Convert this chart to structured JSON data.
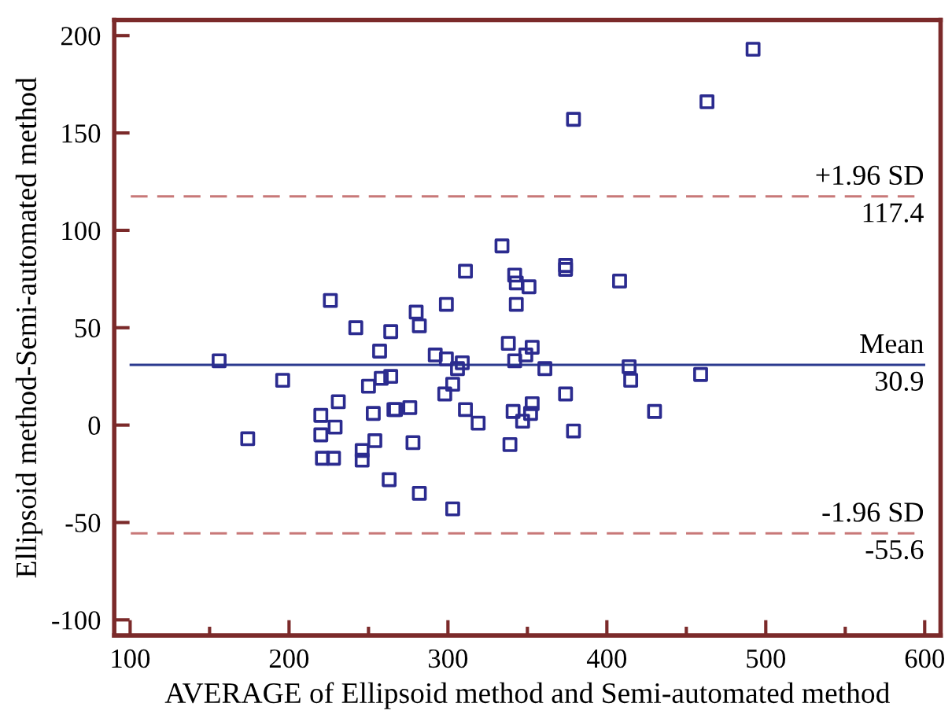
{
  "chart_data": {
    "type": "scatter",
    "xlabel": "AVERAGE of Ellipsoid method and Semi-automated method",
    "ylabel": "Ellipsoid method-Semi-automated method",
    "xlim": [
      90,
      610
    ],
    "ylim": [
      -108,
      208
    ],
    "xticks": [
      100,
      {
        "value": 150,
        "label": null
      },
      200,
      {
        "value": 250,
        "label": null
      },
      300,
      {
        "value": 350,
        "label": null
      },
      400,
      {
        "value": 450,
        "label": null
      },
      500,
      {
        "value": 550,
        "label": null
      },
      600
    ],
    "yticks": [
      -100,
      -50,
      0,
      50,
      100,
      150,
      200
    ],
    "marker": "square",
    "grid": false,
    "legend": false,
    "series": [
      {
        "color": "#2b2b8f",
        "x": [
          156,
          174,
          196,
          220,
          220,
          221,
          228,
          229,
          231,
          246,
          246,
          254,
          253,
          250,
          258,
          257,
          264,
          266,
          267,
          263,
          276,
          278,
          282,
          292,
          299,
          298,
          303,
          306,
          309,
          311,
          319,
          303,
          338,
          342,
          349,
          353,
          341,
          339,
          347,
          352,
          353,
          361,
          374,
          379,
          414,
          415,
          459,
          430,
          334,
          311,
          342,
          343,
          351,
          343,
          299,
          226,
          242,
          264,
          280,
          282,
          492,
          463,
          379,
          374,
          374,
          408
        ],
        "values": [
          33,
          -7,
          23,
          5,
          -5,
          -17,
          -17,
          -1,
          12,
          -13,
          -18,
          -8,
          6,
          20,
          24,
          38,
          25,
          8,
          8,
          -28,
          9,
          -9,
          -35,
          36,
          34,
          16,
          21,
          29,
          32,
          8,
          1,
          -43,
          42,
          33,
          36,
          40,
          7,
          -10,
          2,
          6,
          11,
          29,
          16,
          -3,
          30,
          23,
          26,
          7,
          92,
          79,
          77,
          73,
          71,
          62,
          62,
          64,
          50,
          48,
          58,
          51,
          193,
          166,
          157,
          82,
          80,
          74
        ]
      }
    ],
    "annotations": [
      {
        "text": "117.4",
        "y": 117.4
      },
      {
        "text": "30.9",
        "y": 30.9
      },
      {
        "text": "-55.6",
        "y": -55.6
      }
    ],
    "ref_lines": [
      {
        "axis": "y",
        "value": 117.4,
        "label": "+1.96 SD",
        "color": "#c87878",
        "line_style": "dashed"
      },
      {
        "axis": "y",
        "value": 30.9,
        "label": "Mean",
        "color": "#2b3a8f",
        "line_style": "solid"
      },
      {
        "axis": "y",
        "value": -55.6,
        "label": "-1.96 SD",
        "color": "#c87878",
        "line_style": "dashed"
      }
    ]
  }
}
